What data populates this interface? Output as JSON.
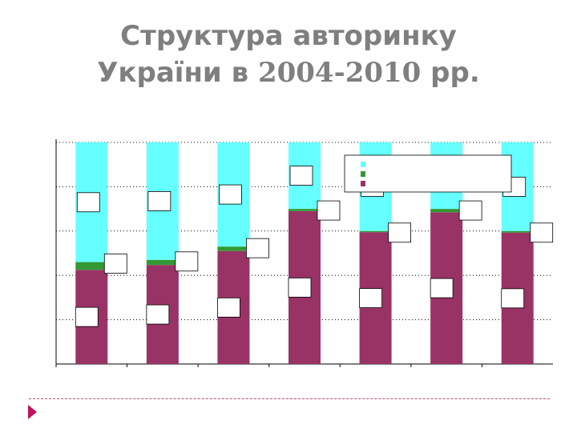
{
  "slide": {
    "title_line1": "Структура авторинку",
    "title_line2_a": "України в ",
    "title_line2_years": "2004-2010",
    "title_line2_b": " рр."
  },
  "colors": {
    "segment_top": "#66ffff",
    "segment_mid": "#339933",
    "segment_bottom": "#993366",
    "grid": "#000000",
    "accent": "#c0145a"
  },
  "chart_data": {
    "type": "bar",
    "stacked": true,
    "percent": true,
    "categories": [
      "",
      "",
      "",
      "",
      "",
      "",
      ""
    ],
    "series": [
      {
        "values": [
          54,
          53,
          47,
          30,
          40,
          30,
          40
        ]
      },
      {
        "values": [
          3.5,
          2.3,
          2,
          1,
          0.5,
          1.5,
          0.7
        ]
      },
      {
        "values": [
          42.5,
          44.7,
          51,
          69,
          59.5,
          68.5,
          59.3
        ]
      }
    ],
    "ylim": [
      0,
      100
    ],
    "grid": true,
    "legend": "top-right"
  }
}
